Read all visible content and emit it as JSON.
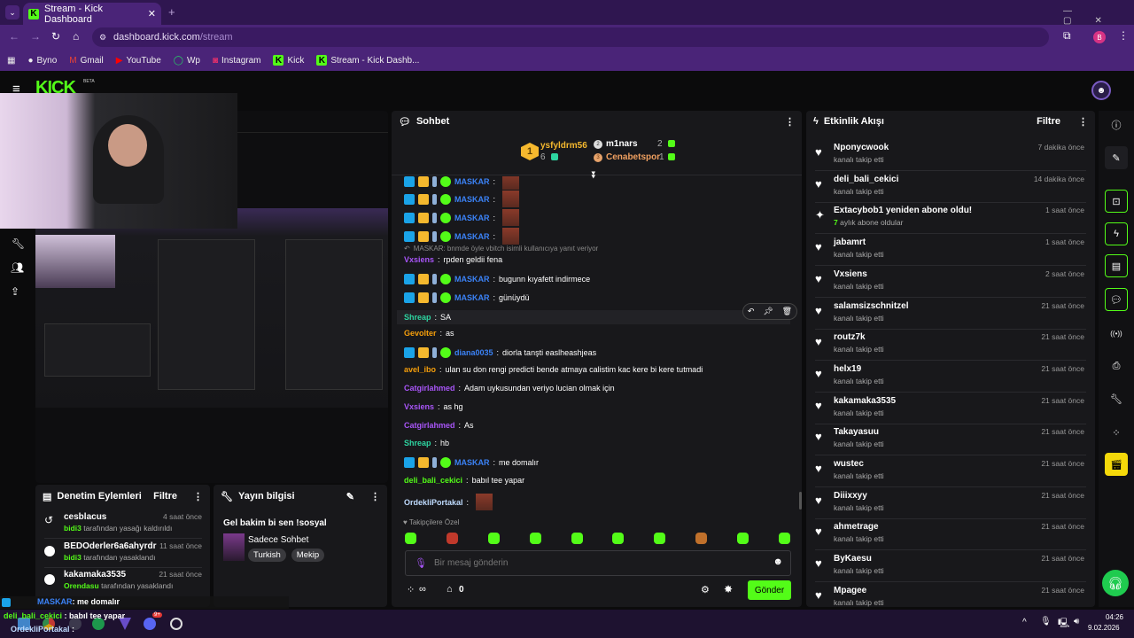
{
  "browser": {
    "tab_title": "Stream - Kick Dashboard",
    "url_host": "dashboard.kick.com",
    "url_path": "/stream",
    "profile_initial": "B",
    "bookmarks": [
      {
        "label": "Byno",
        "icon": "byno-icon"
      },
      {
        "label": "Gmail",
        "icon": "gmail-icon"
      },
      {
        "label": "YouTube",
        "icon": "youtube-icon"
      },
      {
        "label": "Wp",
        "icon": "whatsapp-icon"
      },
      {
        "label": "Instagram",
        "icon": "instagram-icon"
      },
      {
        "label": "Kick",
        "icon": "kick-icon"
      },
      {
        "label": "Stream - Kick Dashb...",
        "icon": "kick-icon"
      }
    ]
  },
  "kick": {
    "logo": "KICK",
    "beta": "BETA",
    "accent": "#53fc18"
  },
  "chat": {
    "title": "Sohbet",
    "leaderboard": {
      "first": {
        "rank": "1",
        "name": "ysfyldrm56",
        "count": "6"
      },
      "second": {
        "rank": "2",
        "name": "m1nars",
        "count": "2"
      },
      "third": {
        "rank": "3",
        "name": "Cenabetspor",
        "count": "1"
      }
    },
    "messages": [
      {
        "user": "MASKAR",
        "color": "#3b82f6",
        "badges": true,
        "text": "",
        "emote": true
      },
      {
        "user": "MASKAR",
        "color": "#3b82f6",
        "badges": true,
        "text": "",
        "emote": true
      },
      {
        "user": "MASKAR",
        "color": "#3b82f6",
        "badges": true,
        "text": "",
        "emote": true
      },
      {
        "user": "MASKAR",
        "color": "#3b82f6",
        "badges": true,
        "text": "",
        "emote": true
      },
      {
        "reply": "MASKAR: bnmde öyle vbitch isimli kullanıcıya yanıt veriyor"
      },
      {
        "user": "Vxsiens",
        "color": "#a855f7",
        "text": "rpden geldii fena"
      },
      {
        "user": "MASKAR",
        "color": "#3b82f6",
        "badges": true,
        "text": "bugunn kıyafett indirmece"
      },
      {
        "user": "MASKAR",
        "color": "#3b82f6",
        "badges": true,
        "text": "günüydü"
      },
      {
        "user": "Shreap",
        "color": "#2dd4a0",
        "text": "SA",
        "highlight": true
      },
      {
        "user": "Gevolter",
        "color": "#f59e0b",
        "text": "as"
      },
      {
        "user": "diana0035",
        "color": "#3b82f6",
        "badges": true,
        "text": "diorla tanşti easlheashjeas"
      },
      {
        "user": "avel_ibo",
        "color": "#f59e0b",
        "text": "ulan su don rengi predicti bende atmaya calistim kac kere bi kere tutmadi"
      },
      {
        "user": "Catgirlahmed",
        "color": "#a855f7",
        "text": "Adam uykusundan veriyo lucian olmak için"
      },
      {
        "user": "Vxsiens",
        "color": "#a855f7",
        "text": "as hg"
      },
      {
        "user": "Catgirlahmed",
        "color": "#a855f7",
        "text": "As"
      },
      {
        "user": "Shreap",
        "color": "#2dd4a0",
        "text": "hb"
      },
      {
        "user": "MASKAR",
        "color": "#3b82f6",
        "badges": true,
        "text": "me domalır"
      },
      {
        "user": "deli_bali_cekici",
        "color": "#53fc18",
        "text": "babıl tee yapar"
      },
      {
        "user": "OrdekliPortakal",
        "color": "#bfdbfe",
        "text": "",
        "emote": true
      }
    ],
    "followers_only": "Takipçilere Özel",
    "input_placeholder": "Bir mesaj gönderin",
    "points": "∞",
    "store_count": "0",
    "send_label": "Gönder"
  },
  "activity": {
    "title": "Etkinlik Akışı",
    "filter": "Filtre",
    "items": [
      {
        "name": "Nponycwook",
        "sub": "kanalı takip etti",
        "time": "7 dakika önce",
        "icon": "heart"
      },
      {
        "name": "deli_bali_cekici",
        "sub": "kanalı takip etti",
        "time": "14 dakika önce",
        "icon": "heart"
      },
      {
        "name": "Extacybob1 yeniden abone oldu!",
        "sub_num": "7",
        "sub": "aylık abone oldular",
        "time": "1 saat önce",
        "icon": "sparkle"
      },
      {
        "name": "jabamrt",
        "sub": "kanalı takip etti",
        "time": "1 saat önce",
        "icon": "heart"
      },
      {
        "name": "Vxsiens",
        "sub": "kanalı takip etti",
        "time": "2 saat önce",
        "icon": "heart"
      },
      {
        "name": "salamsizschnitzel",
        "sub": "kanalı takip etti",
        "time": "21 saat önce",
        "icon": "heart"
      },
      {
        "name": "routz7k",
        "sub": "kanalı takip etti",
        "time": "21 saat önce",
        "icon": "heart"
      },
      {
        "name": "helx19",
        "sub": "kanalı takip etti",
        "time": "21 saat önce",
        "icon": "heart"
      },
      {
        "name": "kakamaka3535",
        "sub": "kanalı takip etti",
        "time": "21 saat önce",
        "icon": "heart"
      },
      {
        "name": "Takayasuu",
        "sub": "kanalı takip etti",
        "time": "21 saat önce",
        "icon": "heart"
      },
      {
        "name": "wustec",
        "sub": "kanalı takip etti",
        "time": "21 saat önce",
        "icon": "heart"
      },
      {
        "name": "Diiixxyy",
        "sub": "kanalı takip etti",
        "time": "21 saat önce",
        "icon": "heart"
      },
      {
        "name": "ahmetrage",
        "sub": "kanalı takip etti",
        "time": "21 saat önce",
        "icon": "heart"
      },
      {
        "name": "ByKaesu",
        "sub": "kanalı takip etti",
        "time": "21 saat önce",
        "icon": "heart"
      },
      {
        "name": "Mpagee",
        "sub": "kanalı takip etti",
        "time": "21 saat önce",
        "icon": "heart"
      }
    ]
  },
  "moderation": {
    "title": "Denetim Eylemleri",
    "filter": "Filtre",
    "items": [
      {
        "name": "cesblacus",
        "by": "bidi3",
        "action": "tarafından yasağı kaldırıldı",
        "time": "4 saat önce"
      },
      {
        "name": "BEDOderler6a6ahyrdr",
        "by": "bidi3",
        "action": "tarafından yasaklandı",
        "time": "11 saat önce"
      },
      {
        "name": "kakamaka3535",
        "by": "Orendasu",
        "action": "tarafından yasaklandı",
        "time": "21 saat önce"
      }
    ]
  },
  "stream_info": {
    "title": "Yayın bilgisi",
    "stream_title": "Gel bakim bi sen !sosyal",
    "category": "Sadece Sohbet",
    "tags": [
      "Turkish",
      "Mekip"
    ]
  },
  "overlay_chat": [
    {
      "user": "MASKAR",
      "text": ": me domalır",
      "color": "#3b82f6"
    },
    {
      "user": "deli_bali_cekici",
      "text": " : babıl tee yapar",
      "color": "#53fc18"
    },
    {
      "user": "OrdekliPortakal",
      "text": " :",
      "color": "#bfdbfe"
    }
  ],
  "taskbar": {
    "time": "04:26",
    "date": "9.02.2026",
    "discord_badge": "9+"
  }
}
